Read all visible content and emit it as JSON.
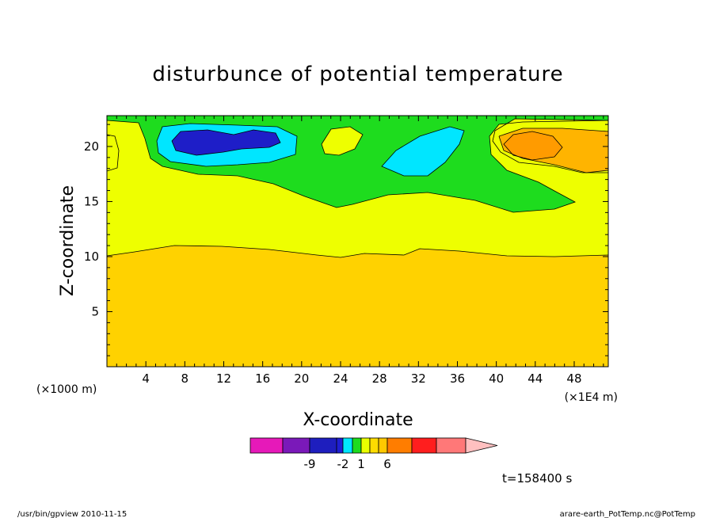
{
  "chart_data": {
    "type": "heatmap",
    "title": "disturbunce of potential temperature",
    "xlabel": "X-coordinate",
    "ylabel": "Z-coordinate",
    "x_unit": "(×1000 m)",
    "x_scale_note": "(×1E4 m)",
    "xlim": [
      0,
      51.5
    ],
    "ylim": [
      0,
      22.8
    ],
    "x_ticks": [
      4,
      8,
      12,
      16,
      20,
      24,
      28,
      32,
      36,
      40,
      44,
      48
    ],
    "y_ticks": [
      5,
      10,
      15,
      20
    ],
    "time_label": "t=158400 s",
    "colorbar": {
      "tick_labels": [
        {
          "label": "-9",
          "value": -9
        },
        {
          "label": "-2",
          "value": -2
        },
        {
          "label": "1",
          "value": 1
        },
        {
          "label": "6",
          "value": 6
        }
      ],
      "colors": [
        "#e619b9",
        "#7a19b9",
        "#1e1ebe",
        "#1e1ed2",
        "#00e6ff",
        "#1edc1e",
        "#eaff00",
        "#ffdc00",
        "#ffc800",
        "#ff7d00",
        "#ff1e1e",
        "#ff7878",
        "#ffc0c0"
      ]
    },
    "fill_colors": {
      "background": "#ffd200",
      "band_1": "#eeff00",
      "band_0": "#1edc1e",
      "band_m1": "#00e6ff",
      "band_m2": "#1e1ec8",
      "band_3": "#ffb400",
      "band_4": "#ff9b00"
    }
  },
  "footer": {
    "left": "/usr/bin/gpview   2010-11-15",
    "right": "arare-earth_PotTemp.nc@PotTemp"
  }
}
